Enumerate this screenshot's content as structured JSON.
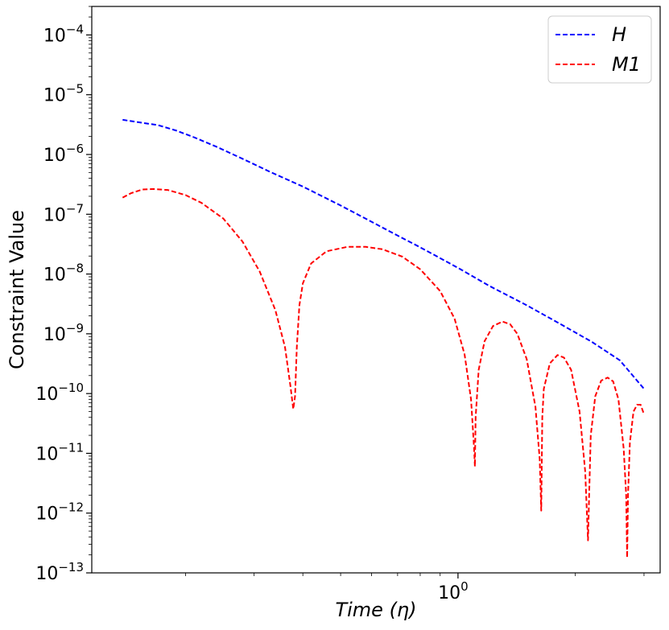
{
  "chart_data": {
    "type": "line",
    "title": "",
    "xlabel": "Time (η)",
    "ylabel": "Constraint Value",
    "xscale": "log",
    "yscale": "log",
    "xlim": [
      0.115,
      3.3
    ],
    "ylim": [
      1e-13,
      0.0003
    ],
    "x_ticks": [
      {
        "value": 1,
        "label": "10",
        "exp": "0"
      }
    ],
    "x_minor_ticks": [
      0.2,
      0.3,
      0.4,
      0.5,
      0.6,
      0.7,
      0.8,
      0.9,
      2,
      3
    ],
    "y_ticks": [
      {
        "value": 1e-13,
        "label": "10",
        "exp": "−13"
      },
      {
        "value": 1e-12,
        "label": "10",
        "exp": "−12"
      },
      {
        "value": 1e-11,
        "label": "10",
        "exp": "−11"
      },
      {
        "value": 1e-10,
        "label": "10",
        "exp": "−10"
      },
      {
        "value": 1e-09,
        "label": "10",
        "exp": "−9"
      },
      {
        "value": 1e-08,
        "label": "10",
        "exp": "−8"
      },
      {
        "value": 1e-07,
        "label": "10",
        "exp": "−7"
      },
      {
        "value": 1e-06,
        "label": "10",
        "exp": "−6"
      },
      {
        "value": 1e-05,
        "label": "10",
        "exp": "−5"
      },
      {
        "value": 0.0001,
        "label": "10",
        "exp": "−4"
      }
    ],
    "grid": false,
    "legend_position": "top-right",
    "series": [
      {
        "name": "H",
        "color": "#0000ff",
        "style": "dashed",
        "x": [
          0.138,
          0.15,
          0.17,
          0.19,
          0.21,
          0.24,
          0.28,
          0.33,
          0.4,
          0.5,
          0.6,
          0.7,
          0.8,
          1.0,
          1.2,
          1.5,
          1.8,
          2.2,
          2.6,
          3.0
        ],
        "y": [
          3.8e-06,
          3.5e-06,
          3.1e-06,
          2.5e-06,
          1.95e-06,
          1.35e-06,
          8.5e-07,
          5.1e-07,
          2.9e-07,
          1.4e-07,
          7.5e-08,
          4.4e-08,
          2.8e-08,
          1.27e-08,
          6.4e-09,
          3e-09,
          1.55e-09,
          7.4e-10,
          3.6e-10,
          1.2e-10
        ]
      },
      {
        "name": "M1",
        "color": "#ff0000",
        "style": "dashed",
        "x": [
          0.138,
          0.145,
          0.155,
          0.165,
          0.18,
          0.2,
          0.22,
          0.25,
          0.28,
          0.31,
          0.34,
          0.36,
          0.372,
          0.378,
          0.382,
          0.386,
          0.392,
          0.4,
          0.42,
          0.46,
          0.52,
          0.58,
          0.64,
          0.72,
          0.8,
          0.9,
          0.98,
          1.04,
          1.08,
          1.1,
          1.105,
          1.11,
          1.13,
          1.17,
          1.23,
          1.3,
          1.36,
          1.42,
          1.5,
          1.58,
          1.62,
          1.635,
          1.645,
          1.66,
          1.72,
          1.8,
          1.87,
          1.95,
          2.05,
          2.12,
          2.155,
          2.17,
          2.19,
          2.25,
          2.33,
          2.42,
          2.5,
          2.58,
          2.66,
          2.7,
          2.715,
          2.73,
          2.76,
          2.82,
          2.88,
          2.94,
          3.0
        ],
        "y": [
          1.9e-07,
          2.25e-07,
          2.6e-07,
          2.65e-07,
          2.55e-07,
          2.1e-07,
          1.55e-07,
          8.5e-08,
          3.5e-08,
          1.1e-08,
          2.5e-09,
          6e-10,
          1.3e-10,
          5.5e-11,
          9e-11,
          6e-10,
          3e-09,
          7e-09,
          1.5e-08,
          2.4e-08,
          2.85e-08,
          2.85e-08,
          2.6e-08,
          1.95e-08,
          1.2e-08,
          5.2e-09,
          1.8e-09,
          4.5e-10,
          8e-11,
          1.2e-11,
          6e-12,
          4e-11,
          2.5e-10,
          7.5e-10,
          1.35e-09,
          1.6e-09,
          1.45e-09,
          1e-09,
          3.8e-10,
          6e-11,
          8e-12,
          1.1e-12,
          4e-11,
          1.2e-10,
          3.2e-10,
          4.4e-10,
          4e-10,
          2.5e-10,
          5e-11,
          5e-12,
          3.5e-13,
          2e-12,
          2e-11,
          9e-11,
          1.65e-10,
          1.85e-10,
          1.6e-10,
          8e-11,
          1.2e-11,
          2e-12,
          1.8e-13,
          2e-12,
          1.5e-11,
          5e-11,
          6.5e-11,
          6.5e-11,
          4.5e-11
        ]
      }
    ]
  }
}
